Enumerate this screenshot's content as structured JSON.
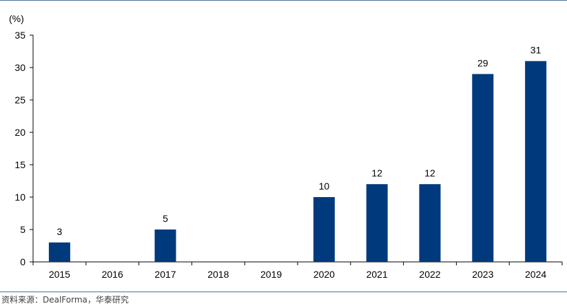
{
  "chart_data": {
    "type": "bar",
    "ylabel": "(%)",
    "categories": [
      "2015",
      "2016",
      "2017",
      "2018",
      "2019",
      "2020",
      "2021",
      "2022",
      "2023",
      "2024"
    ],
    "values": [
      3,
      null,
      5,
      null,
      null,
      10,
      12,
      12,
      29,
      31
    ],
    "data_labels": [
      "3",
      "",
      "5",
      "",
      "",
      "10",
      "12",
      "12",
      "29",
      "31"
    ],
    "ylim": [
      0,
      35
    ],
    "yticks": [
      0,
      5,
      10,
      15,
      20,
      25,
      30,
      35
    ],
    "grid": false,
    "bar_color": "#003a7d"
  },
  "source": "资料来源：DealForma，华泰研究"
}
